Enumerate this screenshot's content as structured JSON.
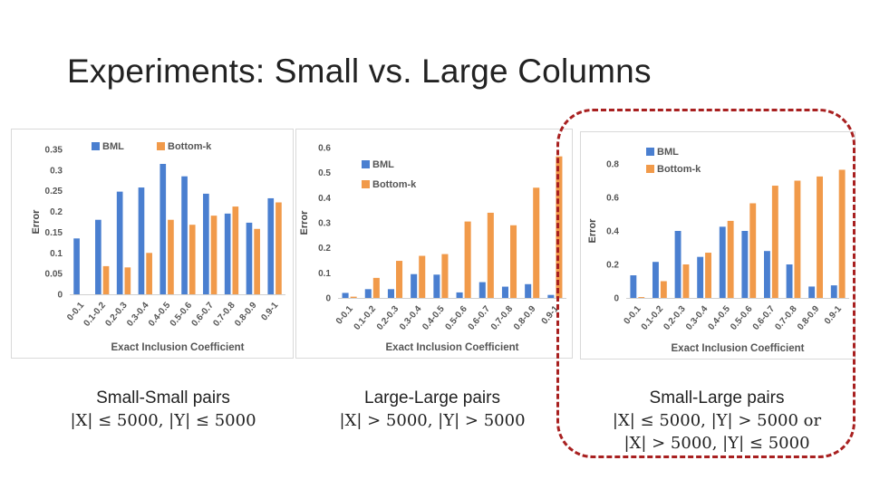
{
  "slide": {
    "title": "Experiments: Small vs. Large Columns"
  },
  "colors": {
    "bml": "#4a7fd0",
    "bottom_k": "#f19a4a",
    "highlight": "#a82020"
  },
  "captions": [
    {
      "label": "Small-Small pairs",
      "condition": "|X| ≤ 5000, |Y| ≤ 5000"
    },
    {
      "label": "Large-Large pairs",
      "condition": "|X| > 5000, |Y| > 5000"
    },
    {
      "label": "Small-Large pairs",
      "condition": "|X| ≤ 5000, |Y| > 5000 or",
      "condition2": "|X| > 5000, |Y| ≤ 5000"
    }
  ],
  "chart_data": [
    {
      "type": "bar",
      "categories": [
        "0-0.1",
        "0.1-0.2",
        "0.2-0.3",
        "0.3-0.4",
        "0.4-0.5",
        "0.5-0.6",
        "0.6-0.7",
        "0.7-0.8",
        "0.8-0.9",
        "0.9-1"
      ],
      "series": [
        {
          "name": "BML",
          "values": [
            0.135,
            0.18,
            0.248,
            0.258,
            0.315,
            0.285,
            0.243,
            0.195,
            0.173,
            0.232
          ]
        },
        {
          "name": "Bottom-k",
          "values": [
            0,
            0.068,
            0.065,
            0.1,
            0.18,
            0.168,
            0.19,
            0.212,
            0.158,
            0.222
          ]
        }
      ],
      "xlabel": "Exact Inclusion Coefficient",
      "ylabel": "Error",
      "yticks": [
        "0",
        "0.05",
        "0.1",
        "0.15",
        "0.2",
        "0.25",
        "0.3",
        "0.35"
      ],
      "ylim": [
        0,
        0.35
      ],
      "legend": "top-center"
    },
    {
      "type": "bar",
      "categories": [
        "0-0.1",
        "0.1-0.2",
        "0.2-0.3",
        "0.3-0.4",
        "0.4-0.5",
        "0.5-0.6",
        "0.6-0.7",
        "0.7-0.8",
        "0.8-0.9",
        "0.9-1"
      ],
      "series": [
        {
          "name": "BML",
          "values": [
            0.02,
            0.035,
            0.035,
            0.095,
            0.093,
            0.022,
            0.063,
            0.045,
            0.055,
            0.012
          ]
        },
        {
          "name": "Bottom-k",
          "values": [
            0.005,
            0.08,
            0.148,
            0.168,
            0.175,
            0.305,
            0.34,
            0.29,
            0.44,
            0.565
          ]
        }
      ],
      "xlabel": "Exact Inclusion Coefficient",
      "ylabel": "Error",
      "yticks": [
        "0",
        "0.1",
        "0.2",
        "0.3",
        "0.4",
        "0.5",
        "0.6"
      ],
      "ylim": [
        0,
        0.6
      ],
      "legend": "top-left"
    },
    {
      "type": "bar",
      "categories": [
        "0-0.1",
        "0.1-0.2",
        "0.2-0.3",
        "0.3-0.4",
        "0.4-0.5",
        "0.5-0.6",
        "0.6-0.7",
        "0.7-0.8",
        "0.8-0.9",
        "0.9-1"
      ],
      "series": [
        {
          "name": "BML",
          "values": [
            0.135,
            0.215,
            0.4,
            0.245,
            0.425,
            0.4,
            0.28,
            0.2,
            0.068,
            0.075
          ]
        },
        {
          "name": "Bottom-k",
          "values": [
            0.005,
            0.1,
            0.2,
            0.27,
            0.46,
            0.565,
            0.67,
            0.7,
            0.725,
            0.765
          ]
        }
      ],
      "xlabel": "Exact Inclusion Coefficient",
      "ylabel": "Error",
      "yticks": [
        "0",
        "0.2",
        "0.4",
        "0.6",
        "0.8"
      ],
      "ylim": [
        0,
        0.8
      ],
      "legend": "top-left"
    }
  ]
}
